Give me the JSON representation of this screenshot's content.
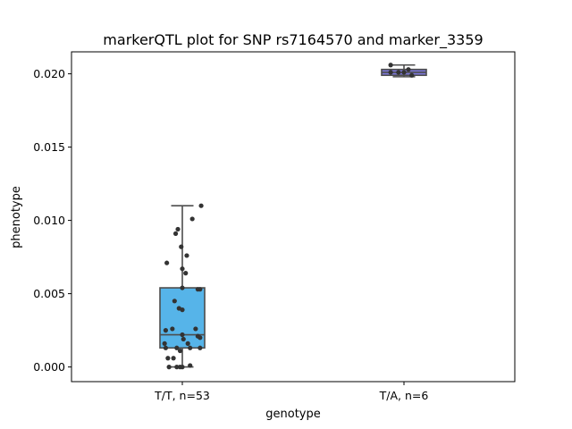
{
  "chart_data": {
    "type": "box",
    "title": "markerQTL plot for SNP rs7164570 and marker_3359",
    "xlabel": "genotype",
    "ylabel": "phenotype",
    "ylim": [
      -0.001,
      0.0215
    ],
    "yticks": [
      0.0,
      0.005,
      0.01,
      0.015,
      0.02
    ],
    "ytick_labels": [
      "0.000",
      "0.005",
      "0.010",
      "0.015",
      "0.020"
    ],
    "categories": [
      "T/T, n=53",
      "T/A, n=6"
    ],
    "grid": false,
    "boxes": [
      {
        "category": "T/T, n=53",
        "whisker_low": 0.0,
        "q1": 0.0013,
        "median": 0.0022,
        "q3": 0.0054,
        "whisker_high": 0.011,
        "color": "#56b4e9"
      },
      {
        "category": "T/A, n=6",
        "whisker_low": 0.0198,
        "q1": 0.0199,
        "median": 0.0201,
        "q3": 0.0203,
        "whisker_high": 0.0206,
        "color": "#7b76d8"
      }
    ],
    "points": [
      {
        "category": 0,
        "jitter": 0.17,
        "y": 0.011
      },
      {
        "category": 0,
        "jitter": 0.09,
        "y": 0.0101
      },
      {
        "category": 0,
        "jitter": -0.04,
        "y": 0.0094
      },
      {
        "category": 0,
        "jitter": -0.06,
        "y": 0.0091
      },
      {
        "category": 0,
        "jitter": -0.01,
        "y": 0.0082
      },
      {
        "category": 0,
        "jitter": 0.04,
        "y": 0.0076
      },
      {
        "category": 0,
        "jitter": -0.14,
        "y": 0.0071
      },
      {
        "category": 0,
        "jitter": 0.0,
        "y": 0.0067
      },
      {
        "category": 0,
        "jitter": 0.03,
        "y": 0.0064
      },
      {
        "category": 0,
        "jitter": 0.14,
        "y": 0.0053
      },
      {
        "category": 0,
        "jitter": 0.16,
        "y": 0.0053
      },
      {
        "category": 0,
        "jitter": 0.0,
        "y": 0.0054
      },
      {
        "category": 0,
        "jitter": -0.07,
        "y": 0.0045
      },
      {
        "category": 0,
        "jitter": -0.03,
        "y": 0.004
      },
      {
        "category": 0,
        "jitter": 0.0,
        "y": 0.0039
      },
      {
        "category": 0,
        "jitter": -0.15,
        "y": 0.0025
      },
      {
        "category": 0,
        "jitter": -0.09,
        "y": 0.0026
      },
      {
        "category": 0,
        "jitter": 0.12,
        "y": 0.0026
      },
      {
        "category": 0,
        "jitter": 0.0,
        "y": 0.0022
      },
      {
        "category": 0,
        "jitter": 0.01,
        "y": 0.0019
      },
      {
        "category": 0,
        "jitter": 0.14,
        "y": 0.0021
      },
      {
        "category": 0,
        "jitter": 0.16,
        "y": 0.002
      },
      {
        "category": 0,
        "jitter": -0.16,
        "y": 0.0016
      },
      {
        "category": 0,
        "jitter": 0.05,
        "y": 0.0016
      },
      {
        "category": 0,
        "jitter": -0.15,
        "y": 0.0013
      },
      {
        "category": 0,
        "jitter": -0.05,
        "y": 0.0013
      },
      {
        "category": 0,
        "jitter": 0.07,
        "y": 0.0013
      },
      {
        "category": 0,
        "jitter": 0.16,
        "y": 0.0013
      },
      {
        "category": 0,
        "jitter": -0.02,
        "y": 0.0011
      },
      {
        "category": 0,
        "jitter": -0.13,
        "y": 0.0006
      },
      {
        "category": 0,
        "jitter": -0.08,
        "y": 0.0006
      },
      {
        "category": 0,
        "jitter": -0.12,
        "y": 0.0
      },
      {
        "category": 0,
        "jitter": -0.05,
        "y": 0.0
      },
      {
        "category": 0,
        "jitter": -0.02,
        "y": 0.0
      },
      {
        "category": 0,
        "jitter": 0.0,
        "y": 0.0
      },
      {
        "category": 0,
        "jitter": 0.07,
        "y": 0.0001
      },
      {
        "category": 1,
        "jitter": -0.12,
        "y": 0.0206
      },
      {
        "category": 1,
        "jitter": -0.12,
        "y": 0.0201
      },
      {
        "category": 1,
        "jitter": -0.05,
        "y": 0.0201
      },
      {
        "category": 1,
        "jitter": 0.0,
        "y": 0.0201
      },
      {
        "category": 1,
        "jitter": 0.04,
        "y": 0.0203
      },
      {
        "category": 1,
        "jitter": 0.07,
        "y": 0.0199
      }
    ]
  }
}
